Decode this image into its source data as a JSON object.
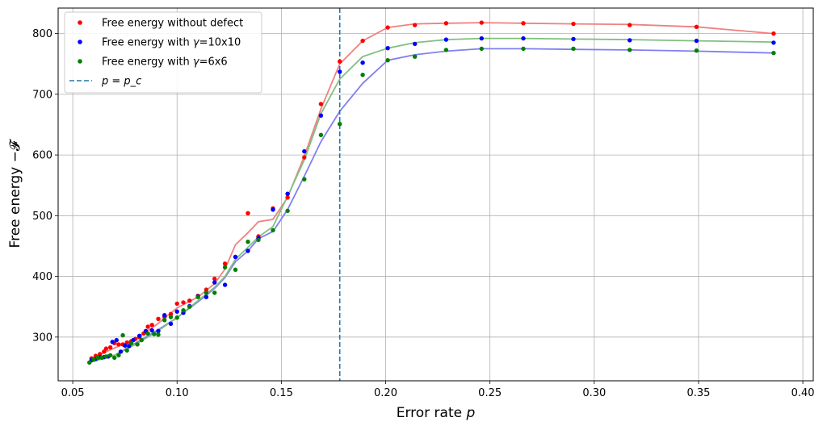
{
  "chart_data": {
    "type": "scatter",
    "xlabel": "Error rate p",
    "ylabel": "Free energy −𝓕",
    "xlim": [
      0.043,
      1.005
    ],
    "ylim": [
      228,
      842
    ],
    "xlim_view": [
      0.043,
      0.405
    ],
    "xticks": [
      0.05,
      0.1,
      0.15,
      0.2,
      0.25,
      0.3,
      0.35,
      0.4
    ],
    "xtick_labels": [
      "0.05",
      "0.10",
      "0.15",
      "0.20",
      "0.25",
      "0.30",
      "0.35",
      "0.40"
    ],
    "yticks": [
      300,
      400,
      500,
      600,
      700,
      800
    ],
    "ytick_labels": [
      "300",
      "400",
      "500",
      "600",
      "700",
      "800"
    ],
    "grid": true,
    "legend_position": "top-left",
    "vline": {
      "x": 0.178,
      "label": "p = p_c",
      "color": "#1f77b4"
    },
    "series": [
      {
        "name": "Free energy without defect",
        "color": "#ff0000",
        "line_color": "#f08080",
        "points": [
          [
            0.059,
            265
          ],
          [
            0.061,
            269
          ],
          [
            0.063,
            272
          ],
          [
            0.065,
            276
          ],
          [
            0.066,
            281
          ],
          [
            0.068,
            283
          ],
          [
            0.07,
            290
          ],
          [
            0.072,
            288
          ],
          [
            0.074,
            288
          ],
          [
            0.076,
            291
          ],
          [
            0.078,
            293
          ],
          [
            0.08,
            297
          ],
          [
            0.082,
            300
          ],
          [
            0.084,
            306
          ],
          [
            0.086,
            317
          ],
          [
            0.088,
            320
          ],
          [
            0.091,
            330
          ],
          [
            0.094,
            333
          ],
          [
            0.097,
            338
          ],
          [
            0.1,
            355
          ],
          [
            0.103,
            357
          ],
          [
            0.106,
            360
          ],
          [
            0.11,
            368
          ],
          [
            0.114,
            378
          ],
          [
            0.118,
            396
          ],
          [
            0.123,
            421
          ],
          [
            0.128,
            432
          ],
          [
            0.134,
            504
          ],
          [
            0.139,
            466
          ],
          [
            0.146,
            512
          ],
          [
            0.153,
            530
          ],
          [
            0.161,
            596
          ],
          [
            0.169,
            684
          ],
          [
            0.178,
            754
          ],
          [
            0.189,
            788
          ],
          [
            0.201,
            810
          ],
          [
            0.214,
            814
          ],
          [
            0.229,
            817
          ],
          [
            0.246,
            818
          ],
          [
            0.266,
            817
          ],
          [
            0.29,
            816
          ],
          [
            0.317,
            814
          ],
          [
            0.349,
            811
          ],
          [
            0.386,
            800
          ]
        ],
        "line": [
          [
            0.059,
            265
          ],
          [
            0.07,
            282
          ],
          [
            0.08,
            297
          ],
          [
            0.09,
            320
          ],
          [
            0.1,
            348
          ],
          [
            0.11,
            366
          ],
          [
            0.118,
            388
          ],
          [
            0.123,
            412
          ],
          [
            0.128,
            452
          ],
          [
            0.134,
            472
          ],
          [
            0.139,
            490
          ],
          [
            0.146,
            494
          ],
          [
            0.153,
            530
          ],
          [
            0.161,
            598
          ],
          [
            0.169,
            676
          ],
          [
            0.178,
            750
          ],
          [
            0.189,
            788
          ],
          [
            0.201,
            810
          ],
          [
            0.214,
            816
          ],
          [
            0.229,
            817
          ],
          [
            0.246,
            818
          ],
          [
            0.266,
            817
          ],
          [
            0.29,
            816
          ],
          [
            0.317,
            815
          ],
          [
            0.349,
            811
          ],
          [
            0.386,
            800
          ]
        ]
      },
      {
        "name": "Free energy with γ=10x10",
        "color": "#0000ff",
        "line_color": "#8080f0",
        "points": [
          [
            0.059,
            262
          ],
          [
            0.061,
            264
          ],
          [
            0.063,
            267
          ],
          [
            0.065,
            267
          ],
          [
            0.067,
            268
          ],
          [
            0.069,
            292
          ],
          [
            0.071,
            295
          ],
          [
            0.073,
            276
          ],
          [
            0.075,
            286
          ],
          [
            0.077,
            285
          ],
          [
            0.079,
            295
          ],
          [
            0.082,
            302
          ],
          [
            0.085,
            310
          ],
          [
            0.088,
            311
          ],
          [
            0.091,
            310
          ],
          [
            0.094,
            336
          ],
          [
            0.097,
            322
          ],
          [
            0.1,
            342
          ],
          [
            0.103,
            340
          ],
          [
            0.106,
            351
          ],
          [
            0.11,
            367
          ],
          [
            0.114,
            366
          ],
          [
            0.118,
            390
          ],
          [
            0.123,
            386
          ],
          [
            0.128,
            432
          ],
          [
            0.134,
            442
          ],
          [
            0.139,
            463
          ],
          [
            0.146,
            510
          ],
          [
            0.153,
            536
          ],
          [
            0.161,
            606
          ],
          [
            0.169,
            665
          ],
          [
            0.178,
            737
          ],
          [
            0.189,
            752
          ],
          [
            0.201,
            776
          ],
          [
            0.214,
            783
          ],
          [
            0.229,
            790
          ],
          [
            0.246,
            792
          ],
          [
            0.266,
            792
          ],
          [
            0.29,
            791
          ],
          [
            0.317,
            789
          ],
          [
            0.349,
            788
          ],
          [
            0.386,
            785
          ]
        ],
        "line": [
          [
            0.059,
            262
          ],
          [
            0.07,
            270
          ],
          [
            0.08,
            290
          ],
          [
            0.09,
            310
          ],
          [
            0.1,
            332
          ],
          [
            0.11,
            358
          ],
          [
            0.118,
            380
          ],
          [
            0.123,
            398
          ],
          [
            0.128,
            424
          ],
          [
            0.134,
            442
          ],
          [
            0.139,
            462
          ],
          [
            0.146,
            474
          ],
          [
            0.153,
            510
          ],
          [
            0.161,
            565
          ],
          [
            0.169,
            622
          ],
          [
            0.178,
            672
          ],
          [
            0.189,
            718
          ],
          [
            0.201,
            756
          ],
          [
            0.214,
            765
          ],
          [
            0.229,
            771
          ],
          [
            0.246,
            775
          ],
          [
            0.266,
            775
          ],
          [
            0.29,
            774
          ],
          [
            0.317,
            773
          ],
          [
            0.349,
            771
          ],
          [
            0.386,
            768
          ]
        ]
      },
      {
        "name": "Free energy with γ=6x6",
        "color": "#008000",
        "line_color": "#80c080",
        "points": [
          [
            0.058,
            258
          ],
          [
            0.06,
            263
          ],
          [
            0.062,
            266
          ],
          [
            0.064,
            266
          ],
          [
            0.066,
            268
          ],
          [
            0.068,
            270
          ],
          [
            0.07,
            266
          ],
          [
            0.072,
            270
          ],
          [
            0.074,
            303
          ],
          [
            0.076,
            278
          ],
          [
            0.078,
            290
          ],
          [
            0.081,
            288
          ],
          [
            0.083,
            295
          ],
          [
            0.086,
            306
          ],
          [
            0.089,
            305
          ],
          [
            0.091,
            304
          ],
          [
            0.094,
            328
          ],
          [
            0.097,
            333
          ],
          [
            0.1,
            332
          ],
          [
            0.103,
            344
          ],
          [
            0.106,
            350
          ],
          [
            0.11,
            366
          ],
          [
            0.114,
            373
          ],
          [
            0.118,
            373
          ],
          [
            0.123,
            415
          ],
          [
            0.128,
            411
          ],
          [
            0.134,
            457
          ],
          [
            0.139,
            460
          ],
          [
            0.146,
            476
          ],
          [
            0.153,
            508
          ],
          [
            0.161,
            560
          ],
          [
            0.169,
            633
          ],
          [
            0.178,
            651
          ],
          [
            0.189,
            732
          ],
          [
            0.201,
            756
          ],
          [
            0.214,
            762
          ],
          [
            0.229,
            773
          ],
          [
            0.246,
            775
          ],
          [
            0.266,
            775
          ],
          [
            0.29,
            775
          ],
          [
            0.317,
            773
          ],
          [
            0.349,
            772
          ],
          [
            0.386,
            768
          ]
        ],
        "line": [
          [
            0.058,
            258
          ],
          [
            0.07,
            270
          ],
          [
            0.08,
            288
          ],
          [
            0.09,
            308
          ],
          [
            0.1,
            332
          ],
          [
            0.11,
            360
          ],
          [
            0.118,
            382
          ],
          [
            0.123,
            400
          ],
          [
            0.128,
            428
          ],
          [
            0.134,
            448
          ],
          [
            0.139,
            465
          ],
          [
            0.146,
            482
          ],
          [
            0.153,
            532
          ],
          [
            0.161,
            592
          ],
          [
            0.169,
            668
          ],
          [
            0.178,
            725
          ],
          [
            0.189,
            762
          ],
          [
            0.201,
            776
          ],
          [
            0.214,
            785
          ],
          [
            0.229,
            790
          ],
          [
            0.246,
            792
          ],
          [
            0.266,
            792
          ],
          [
            0.29,
            791
          ],
          [
            0.317,
            790
          ],
          [
            0.349,
            788
          ],
          [
            0.386,
            786
          ]
        ]
      }
    ]
  }
}
